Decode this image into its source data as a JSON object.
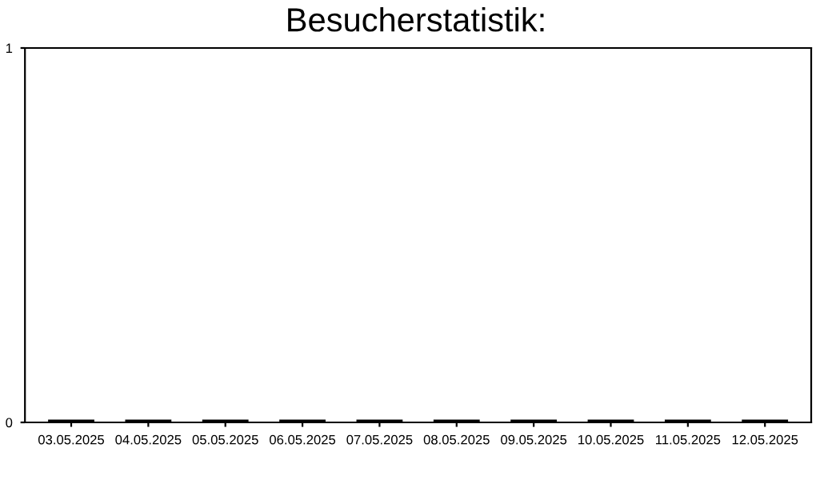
{
  "chart_data": {
    "type": "bar",
    "title": "Besucherstatistik:",
    "categories": [
      "03.05.2025",
      "04.05.2025",
      "05.05.2025",
      "06.05.2025",
      "07.05.2025",
      "08.05.2025",
      "09.05.2025",
      "10.05.2025",
      "11.05.2025",
      "12.05.2025"
    ],
    "values": [
      0,
      0,
      0,
      0,
      0,
      0,
      0,
      0,
      0,
      0
    ],
    "color": "#000000",
    "ylim": [
      0,
      1
    ],
    "yticks": [
      0,
      1
    ],
    "grid": false
  }
}
